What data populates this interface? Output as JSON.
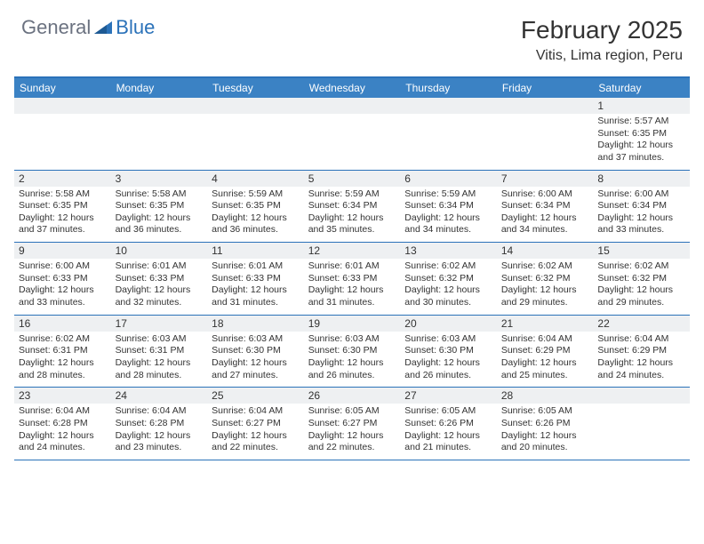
{
  "logo": {
    "general": "General",
    "blue": "Blue"
  },
  "title": "February 2025",
  "location": "Vitis, Lima region, Peru",
  "colors": {
    "header_bar": "#3b82c4",
    "border": "#2b72b9",
    "daynum_bg": "#eef0f2",
    "text": "#333333",
    "white": "#ffffff"
  },
  "weekdays": [
    "Sunday",
    "Monday",
    "Tuesday",
    "Wednesday",
    "Thursday",
    "Friday",
    "Saturday"
  ],
  "weeks": [
    [
      {
        "n": "",
        "sunrise": "",
        "sunset": "",
        "daylight": ""
      },
      {
        "n": "",
        "sunrise": "",
        "sunset": "",
        "daylight": ""
      },
      {
        "n": "",
        "sunrise": "",
        "sunset": "",
        "daylight": ""
      },
      {
        "n": "",
        "sunrise": "",
        "sunset": "",
        "daylight": ""
      },
      {
        "n": "",
        "sunrise": "",
        "sunset": "",
        "daylight": ""
      },
      {
        "n": "",
        "sunrise": "",
        "sunset": "",
        "daylight": ""
      },
      {
        "n": "1",
        "sunrise": "Sunrise: 5:57 AM",
        "sunset": "Sunset: 6:35 PM",
        "daylight": "Daylight: 12 hours and 37 minutes."
      }
    ],
    [
      {
        "n": "2",
        "sunrise": "Sunrise: 5:58 AM",
        "sunset": "Sunset: 6:35 PM",
        "daylight": "Daylight: 12 hours and 37 minutes."
      },
      {
        "n": "3",
        "sunrise": "Sunrise: 5:58 AM",
        "sunset": "Sunset: 6:35 PM",
        "daylight": "Daylight: 12 hours and 36 minutes."
      },
      {
        "n": "4",
        "sunrise": "Sunrise: 5:59 AM",
        "sunset": "Sunset: 6:35 PM",
        "daylight": "Daylight: 12 hours and 36 minutes."
      },
      {
        "n": "5",
        "sunrise": "Sunrise: 5:59 AM",
        "sunset": "Sunset: 6:34 PM",
        "daylight": "Daylight: 12 hours and 35 minutes."
      },
      {
        "n": "6",
        "sunrise": "Sunrise: 5:59 AM",
        "sunset": "Sunset: 6:34 PM",
        "daylight": "Daylight: 12 hours and 34 minutes."
      },
      {
        "n": "7",
        "sunrise": "Sunrise: 6:00 AM",
        "sunset": "Sunset: 6:34 PM",
        "daylight": "Daylight: 12 hours and 34 minutes."
      },
      {
        "n": "8",
        "sunrise": "Sunrise: 6:00 AM",
        "sunset": "Sunset: 6:34 PM",
        "daylight": "Daylight: 12 hours and 33 minutes."
      }
    ],
    [
      {
        "n": "9",
        "sunrise": "Sunrise: 6:00 AM",
        "sunset": "Sunset: 6:33 PM",
        "daylight": "Daylight: 12 hours and 33 minutes."
      },
      {
        "n": "10",
        "sunrise": "Sunrise: 6:01 AM",
        "sunset": "Sunset: 6:33 PM",
        "daylight": "Daylight: 12 hours and 32 minutes."
      },
      {
        "n": "11",
        "sunrise": "Sunrise: 6:01 AM",
        "sunset": "Sunset: 6:33 PM",
        "daylight": "Daylight: 12 hours and 31 minutes."
      },
      {
        "n": "12",
        "sunrise": "Sunrise: 6:01 AM",
        "sunset": "Sunset: 6:33 PM",
        "daylight": "Daylight: 12 hours and 31 minutes."
      },
      {
        "n": "13",
        "sunrise": "Sunrise: 6:02 AM",
        "sunset": "Sunset: 6:32 PM",
        "daylight": "Daylight: 12 hours and 30 minutes."
      },
      {
        "n": "14",
        "sunrise": "Sunrise: 6:02 AM",
        "sunset": "Sunset: 6:32 PM",
        "daylight": "Daylight: 12 hours and 29 minutes."
      },
      {
        "n": "15",
        "sunrise": "Sunrise: 6:02 AM",
        "sunset": "Sunset: 6:32 PM",
        "daylight": "Daylight: 12 hours and 29 minutes."
      }
    ],
    [
      {
        "n": "16",
        "sunrise": "Sunrise: 6:02 AM",
        "sunset": "Sunset: 6:31 PM",
        "daylight": "Daylight: 12 hours and 28 minutes."
      },
      {
        "n": "17",
        "sunrise": "Sunrise: 6:03 AM",
        "sunset": "Sunset: 6:31 PM",
        "daylight": "Daylight: 12 hours and 28 minutes."
      },
      {
        "n": "18",
        "sunrise": "Sunrise: 6:03 AM",
        "sunset": "Sunset: 6:30 PM",
        "daylight": "Daylight: 12 hours and 27 minutes."
      },
      {
        "n": "19",
        "sunrise": "Sunrise: 6:03 AM",
        "sunset": "Sunset: 6:30 PM",
        "daylight": "Daylight: 12 hours and 26 minutes."
      },
      {
        "n": "20",
        "sunrise": "Sunrise: 6:03 AM",
        "sunset": "Sunset: 6:30 PM",
        "daylight": "Daylight: 12 hours and 26 minutes."
      },
      {
        "n": "21",
        "sunrise": "Sunrise: 6:04 AM",
        "sunset": "Sunset: 6:29 PM",
        "daylight": "Daylight: 12 hours and 25 minutes."
      },
      {
        "n": "22",
        "sunrise": "Sunrise: 6:04 AM",
        "sunset": "Sunset: 6:29 PM",
        "daylight": "Daylight: 12 hours and 24 minutes."
      }
    ],
    [
      {
        "n": "23",
        "sunrise": "Sunrise: 6:04 AM",
        "sunset": "Sunset: 6:28 PM",
        "daylight": "Daylight: 12 hours and 24 minutes."
      },
      {
        "n": "24",
        "sunrise": "Sunrise: 6:04 AM",
        "sunset": "Sunset: 6:28 PM",
        "daylight": "Daylight: 12 hours and 23 minutes."
      },
      {
        "n": "25",
        "sunrise": "Sunrise: 6:04 AM",
        "sunset": "Sunset: 6:27 PM",
        "daylight": "Daylight: 12 hours and 22 minutes."
      },
      {
        "n": "26",
        "sunrise": "Sunrise: 6:05 AM",
        "sunset": "Sunset: 6:27 PM",
        "daylight": "Daylight: 12 hours and 22 minutes."
      },
      {
        "n": "27",
        "sunrise": "Sunrise: 6:05 AM",
        "sunset": "Sunset: 6:26 PM",
        "daylight": "Daylight: 12 hours and 21 minutes."
      },
      {
        "n": "28",
        "sunrise": "Sunrise: 6:05 AM",
        "sunset": "Sunset: 6:26 PM",
        "daylight": "Daylight: 12 hours and 20 minutes."
      },
      {
        "n": "",
        "sunrise": "",
        "sunset": "",
        "daylight": ""
      }
    ]
  ]
}
